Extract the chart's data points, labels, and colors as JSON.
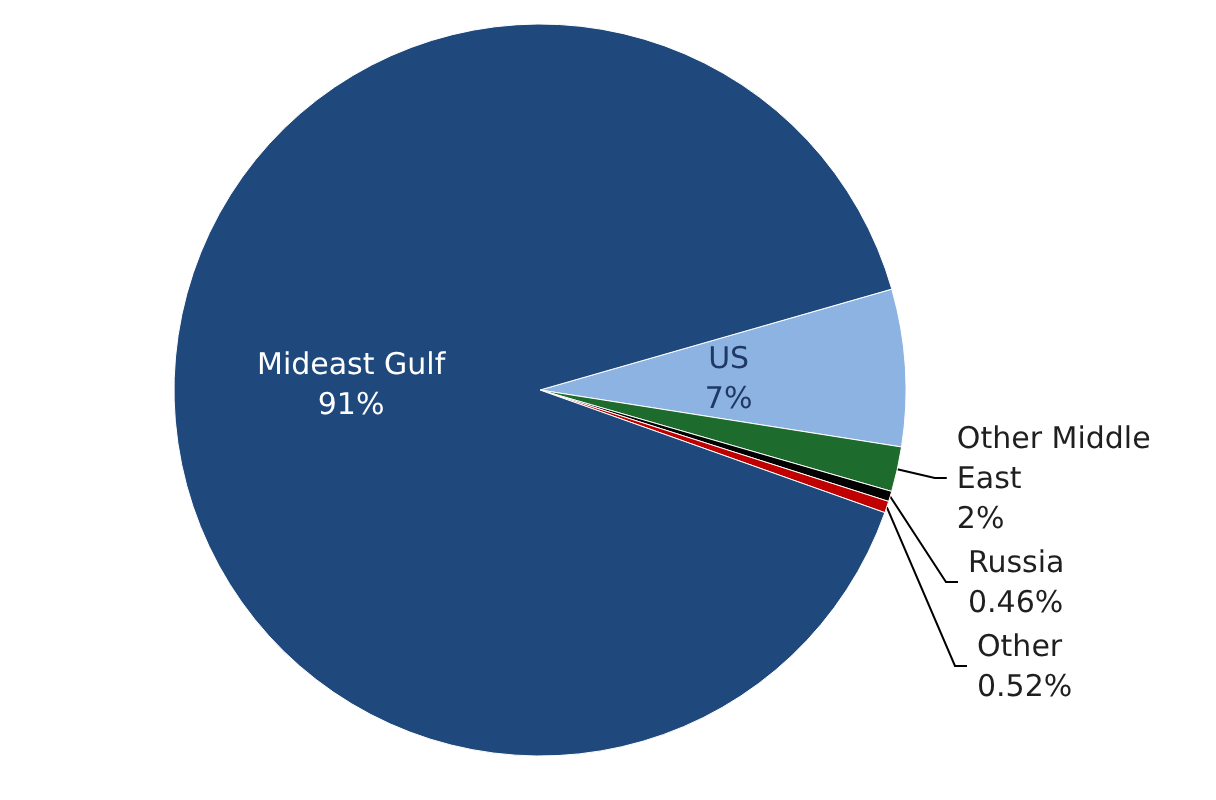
{
  "chart_data": {
    "type": "pie",
    "categories": [
      "US",
      "Other Middle East",
      "Russia",
      "Other",
      "Mideast Gulf"
    ],
    "values": [
      7,
      2,
      0.46,
      0.52,
      91
    ],
    "value_labels": [
      "7%",
      "2%",
      "0.46%",
      "0.52%",
      "91%"
    ],
    "colors": [
      "#8db3e2",
      "#1e6b2e",
      "#000000",
      "#c00000",
      "#1f497d"
    ],
    "legend": false
  }
}
